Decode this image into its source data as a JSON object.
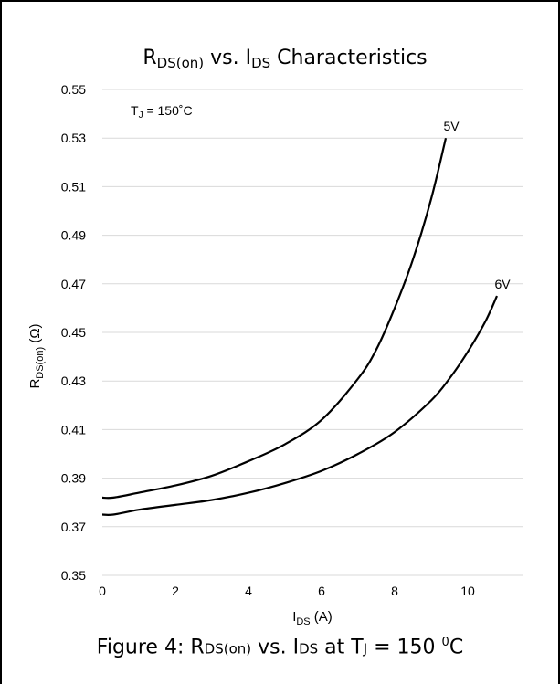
{
  "chart_data": {
    "type": "line",
    "title": {
      "main": "R",
      "sub": "DS(on)",
      "rest1": " vs. I",
      "sub2": "DS",
      "rest2": " Characteristics"
    },
    "ylabel": {
      "main": "R",
      "sub": "DS(on)",
      "rest": " (Ω)"
    },
    "xlabel": {
      "main": "I",
      "sub": "DS",
      "rest": " (A)"
    },
    "annotation": {
      "main": "T",
      "sub": "J",
      "rest": " = 150˚C"
    },
    "xlim": [
      0,
      11.5
    ],
    "ylim": [
      0.35,
      0.55
    ],
    "xticks": [
      "0",
      "2",
      "4",
      "6",
      "8",
      "10"
    ],
    "yticks": [
      "0.35",
      "0.37",
      "0.39",
      "0.41",
      "0.43",
      "0.45",
      "0.47",
      "0.49",
      "0.51",
      "0.53",
      "0.55"
    ],
    "grid": "horizontal",
    "series": [
      {
        "name": "5V",
        "color": "#000000",
        "x": [
          0,
          0.3,
          1,
          2,
          3,
          4,
          5,
          6,
          7,
          7.5,
          8,
          8.5,
          9,
          9.4
        ],
        "y": [
          0.382,
          0.382,
          0.384,
          0.387,
          0.391,
          0.397,
          0.404,
          0.414,
          0.431,
          0.443,
          0.46,
          0.48,
          0.505,
          0.53
        ]
      },
      {
        "name": "6V",
        "color": "#000000",
        "x": [
          0,
          0.3,
          1,
          2,
          3,
          4,
          5,
          6,
          7,
          8,
          9,
          9.5,
          10,
          10.5,
          10.8
        ],
        "y": [
          0.375,
          0.375,
          0.377,
          0.379,
          0.381,
          0.384,
          0.388,
          0.393,
          0.4,
          0.409,
          0.422,
          0.431,
          0.442,
          0.455,
          0.465
        ]
      }
    ]
  },
  "caption": {
    "prefix": "Figure 4: R",
    "sub1": "DS(on)",
    "mid1": " vs. I",
    "sub2": "DS",
    "mid2": "  at T",
    "sub3": "J",
    "mid3": " = 150 ",
    "sup": "0",
    "suffix": "C"
  }
}
